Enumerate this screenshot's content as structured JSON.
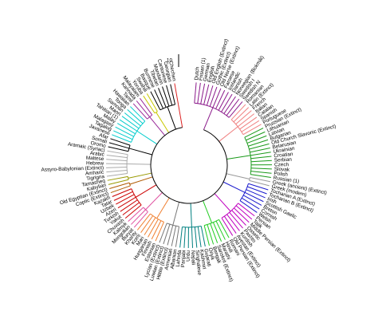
{
  "scale_label": "10",
  "groups": [
    {
      "color": "#8b1a8b",
      "leaves": [
        "Dutch",
        "Frisian (1)",
        "German",
        "English",
        "Old English (Extinct)",
        "Gothic (Extinct)",
        "Old Norse (Extinct)",
        "Faroese",
        "Icelandic",
        "Danish",
        "Norwegian (Bokmål)",
        "Swedish I",
        "Swedish N"
      ]
    },
    {
      "color": "#f08080",
      "leaves": [
        "Romanian",
        "Latin (Extinct)",
        "French",
        "Italian",
        "Catalan",
        "Spanish",
        "Portuguese"
      ]
    },
    {
      "color": "#1a9a1a",
      "leaves": [
        "Prussian (Extinct)",
        "Lithuanian",
        "Latvian",
        "Bulgarian",
        "Old Church Slavonic (Extinct)",
        "Belarusian",
        "Ukrainian",
        "Croatian",
        "Serbian",
        "Czech",
        "Slovak",
        "Polish",
        "Russian (1)"
      ]
    },
    {
      "color": "#999999",
      "leaves": [
        "Greek (ancient) (Extinct)",
        "Greek (modern)"
      ]
    },
    {
      "color": "#1a1acd",
      "leaves": [
        "Tocharian A (Extinct)",
        "Tocharian B (Extinct)",
        "Irish",
        "Scottish Gaelic",
        "Breton",
        "Cornish",
        "Welsh"
      ]
    },
    {
      "color": "#c000c0",
      "leaves": [
        "Persian",
        "Tajik",
        "Middle Persian (Extinct)",
        "Ossetic",
        "Pashto",
        "Kurdish",
        "Avestan (Extinct)",
        "Old Persian (Extinct)"
      ]
    },
    {
      "color": "#22cc22",
      "leaves": [
        "Romani",
        "Hindi",
        "Marathi",
        "Sanskrit (Extinct)",
        "Bengali",
        "Oriya"
      ]
    },
    {
      "color": "#008080",
      "leaves": [
        "Gujarati",
        "Kashmiri",
        "Singhalese",
        "Nepali",
        "Urdu",
        "Panjabi",
        "Lahnda"
      ]
    },
    {
      "color": "#777777",
      "leaves": [
        "Albanian",
        "Armenian",
        "Hittite (Extinct)",
        "Luwian (Extinct)",
        "Lycian (Extinct)"
      ]
    },
    {
      "color": "#f08030",
      "leaves": [
        "Estonian",
        "Finnish",
        "Hungarian",
        "Mari",
        "Komi",
        "Khanty"
      ]
    },
    {
      "color": "#e050a0",
      "leaves": [
        "Buryat",
        "Mongolian",
        "Kalmyk"
      ]
    },
    {
      "color": "#cc0000",
      "leaves": [
        "Chuvash",
        "Yakut",
        "Turkish",
        "Azeri",
        "Uzbek",
        "Tatar",
        "Kazakh"
      ]
    },
    {
      "color": "#b05a00",
      "leaves": [
        "Coptic (Extinct)",
        "Old Egyptian (Extinct)"
      ]
    },
    {
      "color": "#999900",
      "leaves": [
        "Kabylian",
        "Tamasheq"
      ]
    },
    {
      "color": "#aaaaaa",
      "leaves": [
        "Tigrigna",
        "Amharic",
        "Assyro-Babylonian (Extinct)",
        "Hebrew",
        "Maltese",
        "Arabic",
        "Aramaic (Syriac)"
      ]
    },
    {
      "color": "#000000",
      "leaves": [
        "Oromo",
        "Somali",
        "Afar"
      ]
    },
    {
      "color": "#00cccc",
      "leaves": [
        "Javanese",
        "Tagalog",
        "Malagasy",
        "Malay",
        "Tahitian (1)",
        "Maori",
        "Samoan",
        "Tonga",
        "Hawaiian"
      ]
    },
    {
      "color": "#9a2a9a",
      "leaves": [
        "Tamil",
        "Kannada",
        "Malayalam"
      ]
    },
    {
      "color": "#c8c800",
      "leaves": [
        "Yoruba",
        "Swahili"
      ]
    },
    {
      "color": "#000000",
      "leaves": [
        "Basque",
        "Burmese",
        "Tibetan",
        "Mandarin",
        "Cantonese",
        "Georgian"
      ]
    },
    {
      "color": "#dd2222",
      "leaves": [
        "Chechen"
      ]
    }
  ]
}
